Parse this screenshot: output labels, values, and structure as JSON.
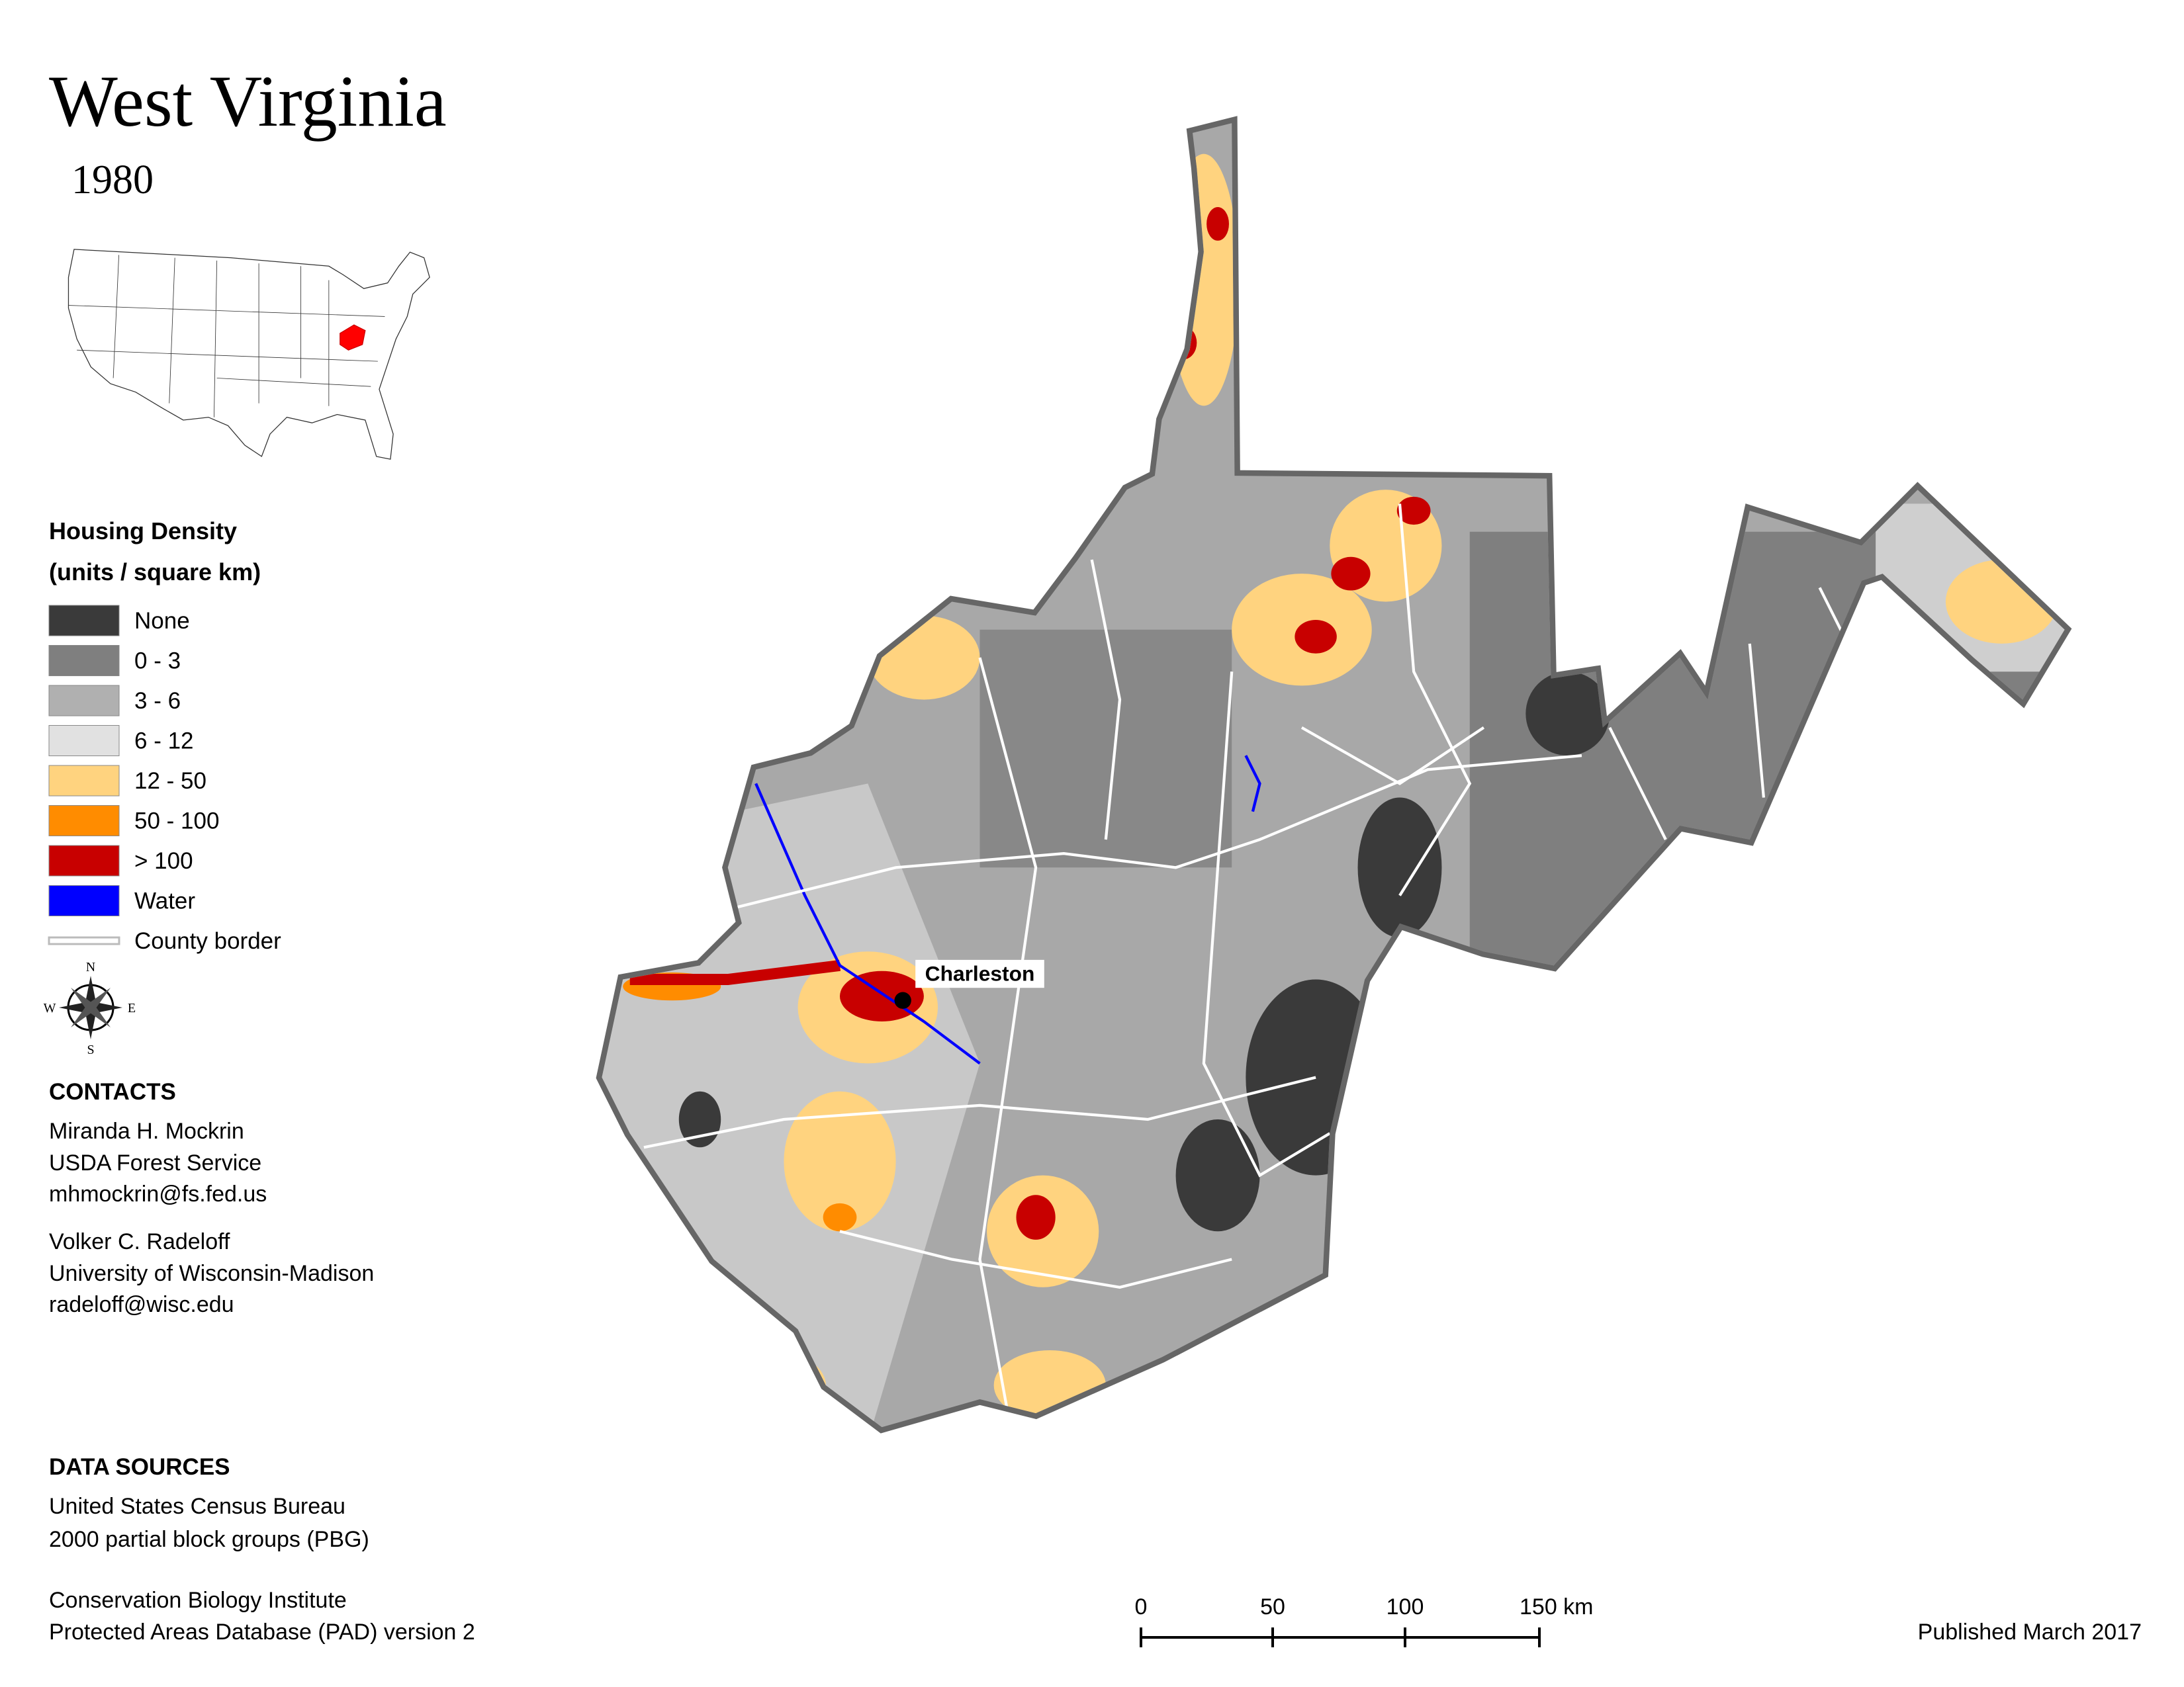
{
  "header": {
    "title": "West Virginia",
    "year": "1980"
  },
  "legend": {
    "title": "Housing Density",
    "subtitle": "(units / square km)",
    "items": [
      {
        "label": "None",
        "color": "#3a3a3a"
      },
      {
        "label": "0 - 3",
        "color": "#7f7f7f"
      },
      {
        "label": "3 - 6",
        "color": "#b0b0b0"
      },
      {
        "label": "6 - 12",
        "color": "#e1e1e1"
      },
      {
        "label": "12 - 50",
        "color": "#ffd37f"
      },
      {
        "label": "50 - 100",
        "color": "#ff8c00"
      },
      {
        "label": "> 100",
        "color": "#c80000"
      },
      {
        "label": "Water",
        "color": "#0000ff"
      },
      {
        "label": "County border",
        "color": "#ffffff",
        "symbol": "line"
      }
    ]
  },
  "compass": {
    "n": "N",
    "w": "W",
    "e": "E",
    "s": "S"
  },
  "contacts": {
    "title": "CONTACTS",
    "people": [
      [
        "Miranda H. Mockrin",
        "USDA Forest Service",
        "mhmockrin@fs.fed.us"
      ],
      [
        "Volker C. Radeloff",
        "University of Wisconsin-Madison",
        "radeloff@wisc.edu"
      ]
    ]
  },
  "sources": {
    "title": "DATA SOURCES",
    "entries": [
      [
        "United States Census Bureau",
        "2000 partial block groups (PBG)"
      ],
      [
        "Conservation Biology Institute",
        "Protected Areas Database (PAD) version 2"
      ]
    ]
  },
  "map": {
    "city": "Charleston"
  },
  "scale_bar": {
    "ticks": [
      "0",
      "50",
      "100",
      "150 km"
    ]
  },
  "footer": {
    "published": "Published March 2017"
  }
}
